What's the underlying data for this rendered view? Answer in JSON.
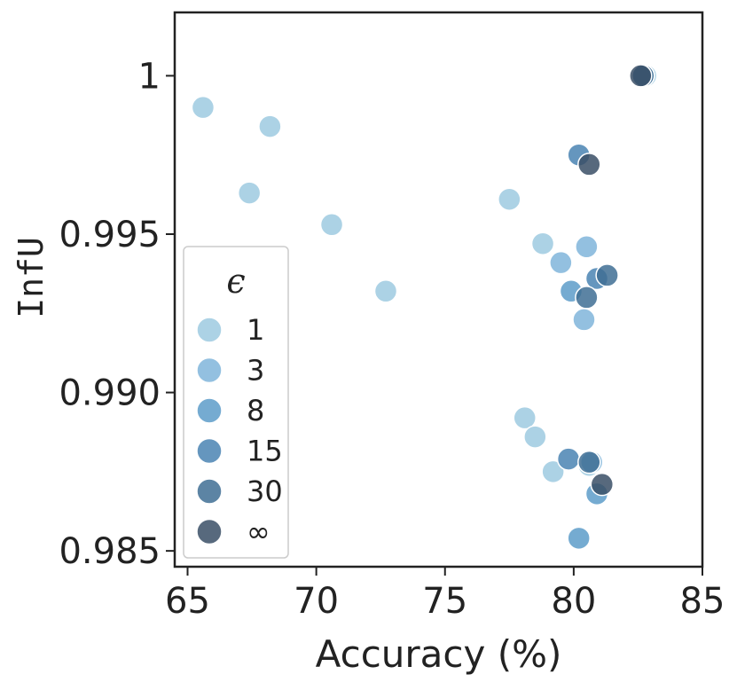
{
  "chart_data": {
    "type": "scatter",
    "xlabel": "Accuracy (%)",
    "ylabel": "InfU",
    "xlim": [
      64.5,
      85
    ],
    "ylim": [
      0.9845,
      1.002
    ],
    "xticks": [
      65,
      70,
      75,
      80,
      85
    ],
    "xtick_labels": [
      "65",
      "70",
      "75",
      "80",
      "85"
    ],
    "yticks": [
      0.985,
      0.99,
      0.995,
      1.0
    ],
    "ytick_labels": [
      "0.985",
      "0.990",
      "0.995",
      "1"
    ],
    "grid": false,
    "legend": {
      "title": "ϵ",
      "placement": "lower-left"
    },
    "series": [
      {
        "name": "1",
        "color": "#9ecae1",
        "points": [
          [
            65.6,
            0.999
          ],
          [
            68.2,
            0.9984
          ],
          [
            67.4,
            0.9963
          ],
          [
            70.6,
            0.9953
          ],
          [
            72.7,
            0.9932
          ],
          [
            77.5,
            0.9961
          ],
          [
            78.8,
            0.9947
          ],
          [
            78.1,
            0.9892
          ],
          [
            78.5,
            0.9886
          ],
          [
            79.2,
            0.9875
          ],
          [
            80.6,
            0.9877
          ],
          [
            82.8,
            1.0
          ]
        ]
      },
      {
        "name": "3",
        "color": "#80b5db",
        "points": [
          [
            79.5,
            0.9941
          ],
          [
            80.4,
            0.9923
          ],
          [
            80.5,
            0.9946
          ],
          [
            80.7,
            0.9878
          ],
          [
            82.7,
            1.0
          ]
        ]
      },
      {
        "name": "8",
        "color": "#5d9cc9",
        "points": [
          [
            79.9,
            0.9932
          ],
          [
            80.2,
            0.9854
          ],
          [
            80.9,
            0.9868
          ],
          [
            82.7,
            1.0
          ]
        ]
      },
      {
        "name": "15",
        "color": "#4a84b3",
        "points": [
          [
            79.8,
            0.9879
          ],
          [
            80.2,
            0.9975
          ],
          [
            80.9,
            0.9936
          ],
          [
            82.7,
            1.0
          ]
        ]
      },
      {
        "name": "30",
        "color": "#3f6f94",
        "points": [
          [
            80.5,
            0.993
          ],
          [
            80.6,
            0.9878
          ],
          [
            81.3,
            0.9937
          ],
          [
            82.7,
            1.0
          ]
        ]
      },
      {
        "name": "∞",
        "color": "#3a4f66",
        "points": [
          [
            80.6,
            0.9972
          ],
          [
            81.1,
            0.9871
          ],
          [
            82.6,
            1.0
          ]
        ]
      }
    ]
  }
}
